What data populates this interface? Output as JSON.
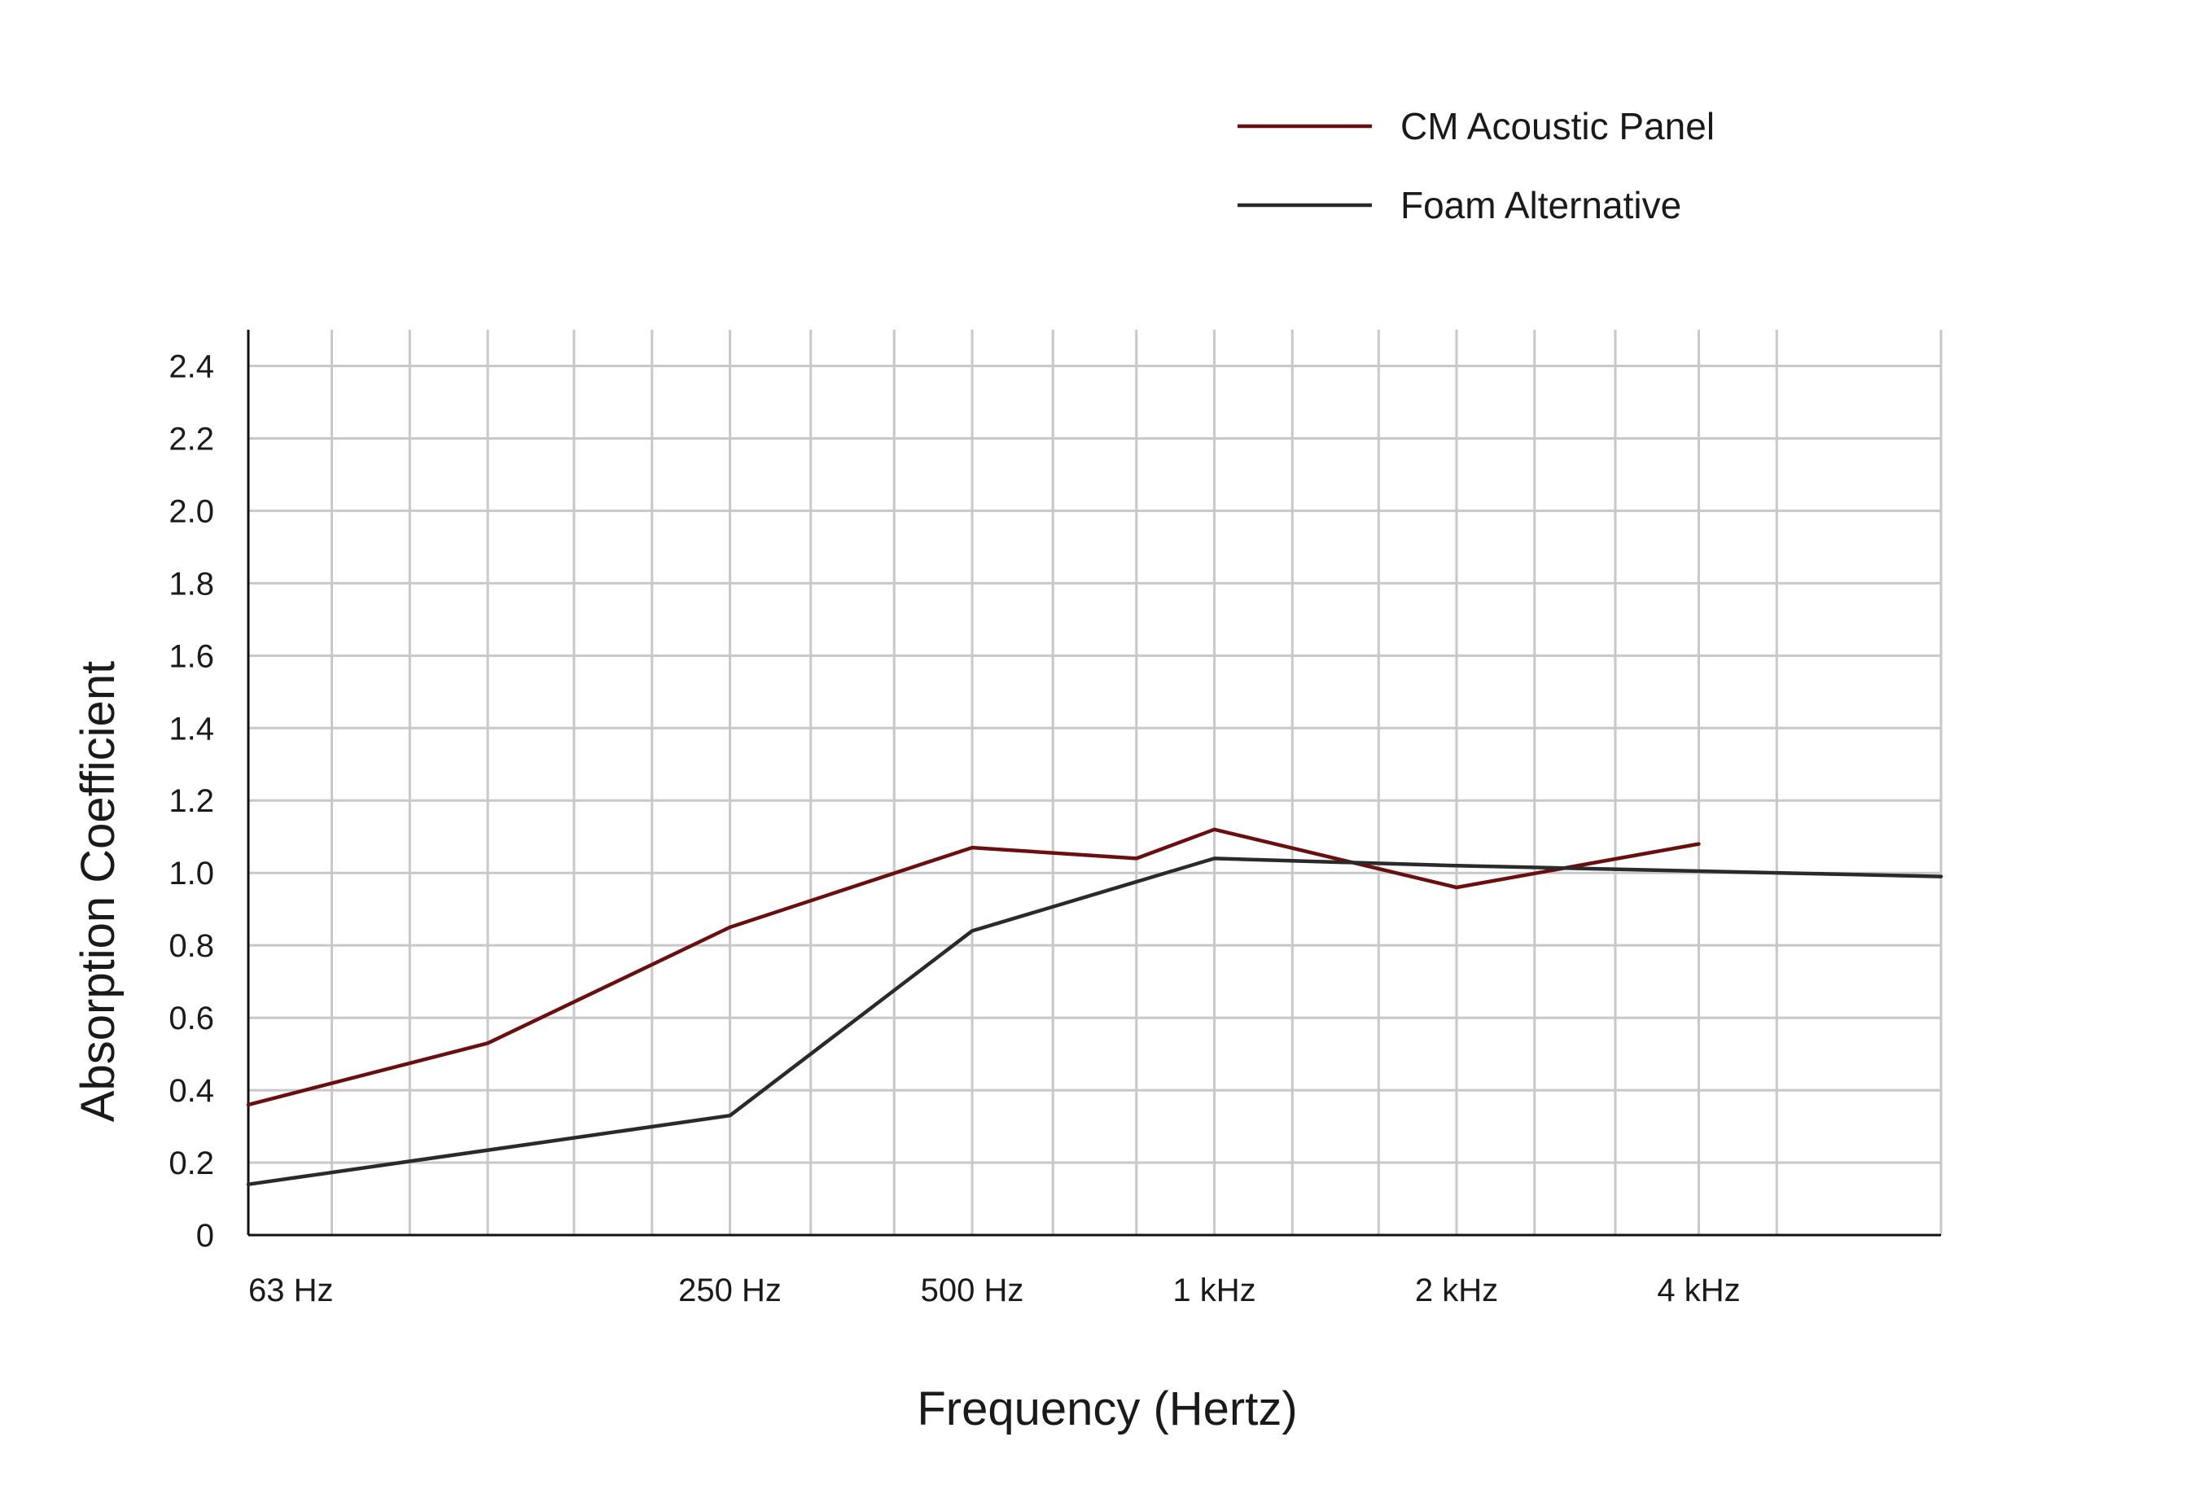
{
  "chart_data": {
    "type": "line",
    "title": "",
    "xlabel": "Frequency (Hertz)",
    "ylabel": "Absorption Coefficient",
    "x_scale": "log",
    "x_unit": "Hz",
    "xlim": [
      63,
      8000
    ],
    "ylim": [
      0,
      2.5
    ],
    "x_ticks": [
      {
        "value": 63,
        "label": "63 Hz"
      },
      {
        "value": 250,
        "label": "250 Hz"
      },
      {
        "value": 500,
        "label": "500 Hz"
      },
      {
        "value": 1000,
        "label": "1 kHz"
      },
      {
        "value": 2000,
        "label": "2 kHz"
      },
      {
        "value": 4000,
        "label": "4 kHz"
      }
    ],
    "x_gridlines": [
      80,
      100,
      125,
      160,
      200,
      250,
      315,
      400,
      500,
      630,
      800,
      1000,
      1250,
      1600,
      2000,
      2500,
      3150,
      4000,
      5000
    ],
    "y_ticks": [
      {
        "value": 0,
        "label": "0"
      },
      {
        "value": 0.2,
        "label": "0.2"
      },
      {
        "value": 0.4,
        "label": "0.4"
      },
      {
        "value": 0.6,
        "label": "0.6"
      },
      {
        "value": 0.8,
        "label": "0.8"
      },
      {
        "value": 1.0,
        "label": "1.0"
      },
      {
        "value": 1.2,
        "label": "1.2"
      },
      {
        "value": 1.4,
        "label": "1.4"
      },
      {
        "value": 1.6,
        "label": "1.6"
      },
      {
        "value": 1.8,
        "label": "1.8"
      },
      {
        "value": 2.0,
        "label": "2.0"
      },
      {
        "value": 2.2,
        "label": "2.2"
      },
      {
        "value": 2.4,
        "label": "2.4"
      }
    ],
    "grid": true,
    "legend": "top-right",
    "series": [
      {
        "name": "CM Acoustic Panel",
        "color": "#6b0e0e",
        "points": [
          {
            "x": 63,
            "y": 0.36
          },
          {
            "x": 125,
            "y": 0.53
          },
          {
            "x": 250,
            "y": 0.85
          },
          {
            "x": 500,
            "y": 1.07
          },
          {
            "x": 800,
            "y": 1.04
          },
          {
            "x": 1000,
            "y": 1.12
          },
          {
            "x": 2000,
            "y": 0.96
          },
          {
            "x": 4000,
            "y": 1.08
          }
        ]
      },
      {
        "name": "Foam Alternative",
        "color": "#2a2a2a",
        "points": [
          {
            "x": 63,
            "y": 0.14
          },
          {
            "x": 250,
            "y": 0.33
          },
          {
            "x": 500,
            "y": 0.84
          },
          {
            "x": 1000,
            "y": 1.04
          },
          {
            "x": 2000,
            "y": 1.02
          },
          {
            "x": 8000,
            "y": 0.99
          }
        ]
      }
    ]
  }
}
